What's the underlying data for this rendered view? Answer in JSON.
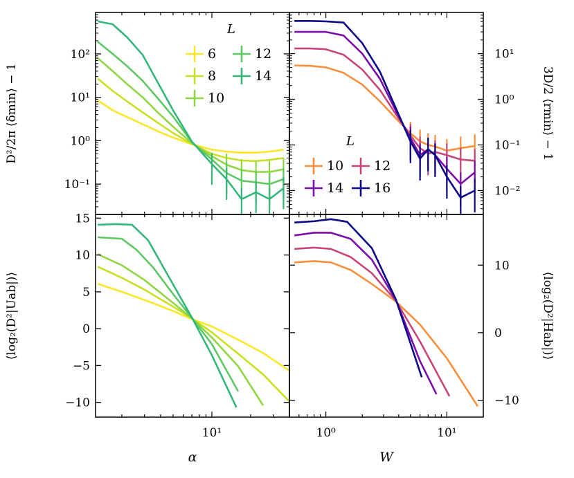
{
  "chart_data": [
    {
      "id": "top-left",
      "type": "line",
      "xscale": "log",
      "yscale": "log",
      "xlim": [
        1.25,
        40
      ],
      "ylim": [
        0.02,
        900
      ],
      "xlabel": "",
      "ylabel": "D²/2π ⟨δmin⟩ − 1",
      "yticks": [
        {
          "v": 0.1,
          "t": "10⁻¹"
        },
        {
          "v": 1,
          "t": "10⁰"
        },
        {
          "v": 10,
          "t": "10¹"
        },
        {
          "v": 100,
          "t": "10²"
        }
      ],
      "legend": {
        "title": "L",
        "position": "top-right",
        "ncol": 2
      },
      "x": [
        1.3,
        1.7,
        2.2,
        2.9,
        3.8,
        5,
        7,
        10,
        13,
        17,
        22,
        28,
        36
      ],
      "series": [
        {
          "name": "6",
          "color": "#fde725",
          "values": [
            8.5,
            5.0,
            3.5,
            2.4,
            1.65,
            1.18,
            0.83,
            0.62,
            0.56,
            0.53,
            0.53,
            0.56,
            0.62
          ]
        },
        {
          "name": "8",
          "color": "#c8e020",
          "values": [
            27,
            14,
            8,
            4.5,
            2.6,
            1.5,
            0.84,
            0.5,
            0.4,
            0.35,
            0.34,
            0.36,
            0.4
          ]
        },
        {
          "name": "10",
          "color": "#90d743",
          "values": [
            80,
            40,
            20,
            10,
            4.5,
            2.1,
            0.88,
            0.44,
            0.28,
            0.21,
            0.19,
            0.19,
            0.22
          ]
        },
        {
          "name": "12",
          "color": "#5ec962",
          "values": [
            190,
            100,
            52,
            24,
            9.5,
            3.6,
            0.92,
            0.37,
            0.18,
            0.12,
            0.11,
            0.1,
            0.13
          ]
        },
        {
          "name": "14",
          "color": "#35b779",
          "values": [
            560,
            480,
            240,
            95,
            22,
            5.0,
            0.95,
            0.29,
            0.13,
            0.045,
            0.065,
            0.045,
            0.08
          ]
        }
      ]
    },
    {
      "id": "top-right",
      "type": "line",
      "xscale": "log",
      "yscale": "log",
      "xlim": [
        0.5,
        20
      ],
      "ylim": [
        0.003,
        80
      ],
      "xlabel": "",
      "ylabel": "3D/2 ⟨rmin⟩ − 1",
      "yticks": [
        {
          "v": 0.01,
          "t": "10⁻²"
        },
        {
          "v": 0.1,
          "t": "10⁻¹"
        },
        {
          "v": 1,
          "t": "10⁰"
        },
        {
          "v": 10,
          "t": "10¹"
        }
      ],
      "legend": {
        "title": "L",
        "position": "center-left",
        "ncol": 2
      },
      "x": [
        0.55,
        0.75,
        1.0,
        1.4,
        2.0,
        2.8,
        4.0,
        5.0,
        6.0,
        7.0,
        8.0,
        10.0,
        13.0,
        17.0
      ],
      "series": [
        {
          "name": "10",
          "color": "#f98e3b",
          "values": [
            5.5,
            5.4,
            5.0,
            3.8,
            2.1,
            0.9,
            0.33,
            0.18,
            0.12,
            0.1,
            0.092,
            0.075,
            0.085,
            0.095
          ]
        },
        {
          "name": "12",
          "color": "#c6467a",
          "values": [
            13,
            13,
            12.5,
            9.5,
            4.5,
            1.6,
            0.38,
            0.16,
            0.085,
            0.065,
            0.07,
            0.06,
            0.048,
            0.045
          ]
        },
        {
          "name": "14",
          "color": "#7b0ea8",
          "values": [
            30,
            30,
            30,
            25,
            10,
            2.8,
            0.42,
            0.14,
            0.06,
            0.08,
            0.06,
            0.03,
            0.014,
            0.025
          ]
        },
        {
          "name": "16",
          "color": "#0d0887",
          "values": [
            52,
            52,
            51,
            48,
            17,
            4,
            0.46,
            0.12,
            0.05,
            0.08,
            0.06,
            0.02,
            0.007,
            0.01
          ]
        }
      ]
    },
    {
      "id": "bottom-left",
      "type": "line",
      "xscale": "log",
      "yscale": "linear",
      "xlim": [
        1.25,
        40
      ],
      "ylim": [
        -12,
        15.5
      ],
      "xlabel": "α",
      "ylabel": "⟨log₂(D²|Uab|)⟩",
      "yticks": [
        {
          "v": -10,
          "t": "−10"
        },
        {
          "v": -5,
          "t": "−5"
        },
        {
          "v": 0,
          "t": "0"
        },
        {
          "v": 5,
          "t": "5"
        },
        {
          "v": 10,
          "t": "10"
        },
        {
          "v": 15,
          "t": "15"
        }
      ],
      "xticks": [
        {
          "v": 10,
          "t": "10¹"
        }
      ],
      "series": [
        {
          "name": "6",
          "color": "#fde725",
          "x": [
            1.3,
            2,
            3,
            5,
            7,
            10,
            16,
            25,
            40
          ],
          "values": [
            6.1,
            5.0,
            3.9,
            2.4,
            1.3,
            0.3,
            -1.5,
            -3.3,
            -5.7
          ]
        },
        {
          "name": "8",
          "color": "#c8e020",
          "x": [
            1.3,
            2,
            3,
            5,
            7,
            10,
            16,
            25,
            40
          ],
          "values": [
            8.4,
            6.9,
            5.3,
            3.0,
            1.4,
            -0.5,
            -3.4,
            -6.2,
            -9.9
          ]
        },
        {
          "name": "10",
          "color": "#90d743",
          "x": [
            1.3,
            2,
            3,
            5,
            7,
            10,
            16,
            25
          ],
          "values": [
            10.1,
            8.6,
            6.6,
            3.5,
            1.4,
            -1.2,
            -5.1,
            -10.4
          ]
        },
        {
          "name": "12",
          "color": "#5ec962",
          "x": [
            1.3,
            2,
            2.6,
            3.5,
            5,
            7,
            10,
            16
          ],
          "values": [
            12.4,
            12.2,
            10.7,
            8.3,
            4.7,
            1.45,
            -2.1,
            -8.5
          ]
        },
        {
          "name": "14",
          "color": "#35b779",
          "x": [
            1.3,
            1.8,
            2.4,
            3.2,
            5,
            7,
            10,
            15.5
          ],
          "values": [
            14.1,
            14.2,
            14.1,
            12.0,
            6.0,
            1.5,
            -3.6,
            -10.7
          ]
        }
      ]
    },
    {
      "id": "bottom-right",
      "type": "line",
      "xscale": "log",
      "yscale": "linear",
      "xlim": [
        0.5,
        20
      ],
      "ylim": [
        -12.5,
        17.5
      ],
      "xlabel": "W",
      "ylabel": "⟨log₂(D²|Hab|)⟩",
      "yticks": [
        {
          "v": -10,
          "t": "−10"
        },
        {
          "v": 0,
          "t": "0"
        },
        {
          "v": 10,
          "t": "10"
        }
      ],
      "xticks": [
        {
          "v": 1,
          "t": "10⁰"
        },
        {
          "v": 10,
          "t": "10¹"
        }
      ],
      "series": [
        {
          "name": "10",
          "color": "#f98e3b",
          "x": [
            0.55,
            0.8,
            1.1,
            1.6,
            2.4,
            3.8,
            6,
            10,
            18
          ],
          "values": [
            10.4,
            10.6,
            10.4,
            9.3,
            7.2,
            4.6,
            1.2,
            -3.8,
            -10.9
          ]
        },
        {
          "name": "12",
          "color": "#c6467a",
          "x": [
            0.55,
            0.8,
            1.1,
            1.6,
            2.4,
            3.8,
            6,
            10.5
          ],
          "values": [
            12.4,
            12.6,
            12.4,
            11.2,
            8.8,
            4.7,
            -1.3,
            -9.4
          ]
        },
        {
          "name": "14",
          "color": "#7b0ea8",
          "x": [
            0.55,
            0.8,
            1.1,
            1.6,
            2.4,
            3.8,
            6,
            8.2
          ],
          "values": [
            14.4,
            14.8,
            14.8,
            13.9,
            10.8,
            4.8,
            -4.2,
            -9.1
          ]
        },
        {
          "name": "16",
          "color": "#0d0887",
          "x": [
            0.55,
            0.8,
            1.1,
            1.5,
            2.4,
            3.8,
            6.2
          ],
          "values": [
            16.3,
            16.5,
            16.8,
            16.4,
            12.5,
            4.9,
            -6.6
          ]
        }
      ]
    }
  ]
}
